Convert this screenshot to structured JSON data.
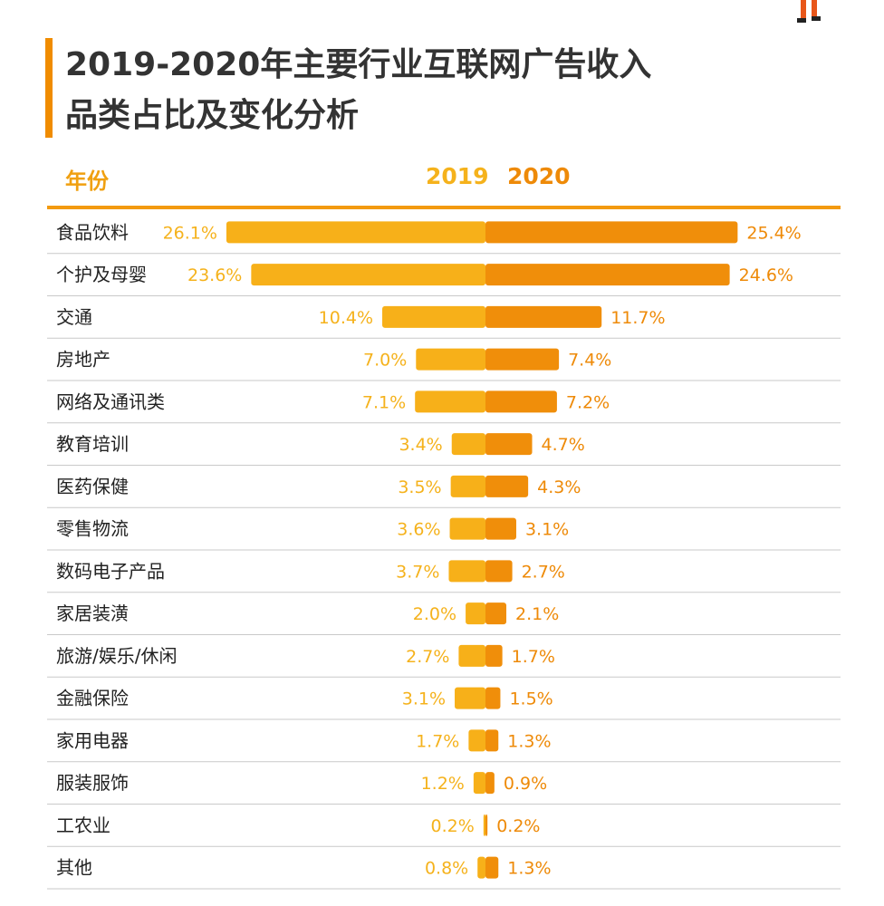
{
  "title_lines": [
    "2019-2020年主要行业互联网广告收入",
    "品类占比及变化分析"
  ],
  "header": {
    "label": "年份",
    "year_a": "2019",
    "year_b": "2020"
  },
  "colors": {
    "accent": "#f08c00",
    "bar_2019": "#f7b019",
    "bar_2020": "#f08e0a",
    "divider": "#c9c9c9",
    "text": "#333333"
  },
  "chart_data": {
    "type": "bar",
    "orientation": "horizontal-butterfly",
    "title": "2019-2020年主要行业互联网广告收入品类占比及变化分析",
    "unit": "%",
    "categories": [
      "食品饮料",
      "个护及母婴",
      "交通",
      "房地产",
      "网络及通讯类",
      "教育培训",
      "医药保健",
      "零售物流",
      "数码电子产品",
      "家居装潢",
      "旅游/娱乐/休闲",
      "金融保险",
      "家用电器",
      "服装服饰",
      "工农业",
      "其他"
    ],
    "series": [
      {
        "name": "2019",
        "values": [
          26.1,
          23.6,
          10.4,
          7.0,
          7.1,
          3.4,
          3.5,
          3.6,
          3.7,
          2.0,
          2.7,
          3.1,
          1.7,
          1.2,
          0.2,
          0.8
        ]
      },
      {
        "name": "2020",
        "values": [
          25.4,
          24.6,
          11.7,
          7.4,
          7.2,
          4.7,
          4.3,
          3.1,
          2.7,
          2.1,
          1.7,
          1.5,
          1.3,
          0.9,
          0.2,
          1.3
        ]
      }
    ],
    "labels_2019": [
      "26.1%",
      "23.6%",
      "10.4%",
      "7.0%",
      "7.1%",
      "3.4%",
      "3.5%",
      "3.6%",
      "3.7%",
      "2.0%",
      "2.7%",
      "3.1%",
      "1.7%",
      "1.2%",
      "0.2%",
      "0.8%"
    ],
    "labels_2020": [
      "25.4%",
      "24.6%",
      "11.7%",
      "7.4%",
      "7.2%",
      "4.7%",
      "4.3%",
      "3.1%",
      "2.7%",
      "2.1%",
      "1.7%",
      "1.5%",
      "1.3%",
      "0.9%",
      "0.2%",
      "1.3%"
    ]
  }
}
